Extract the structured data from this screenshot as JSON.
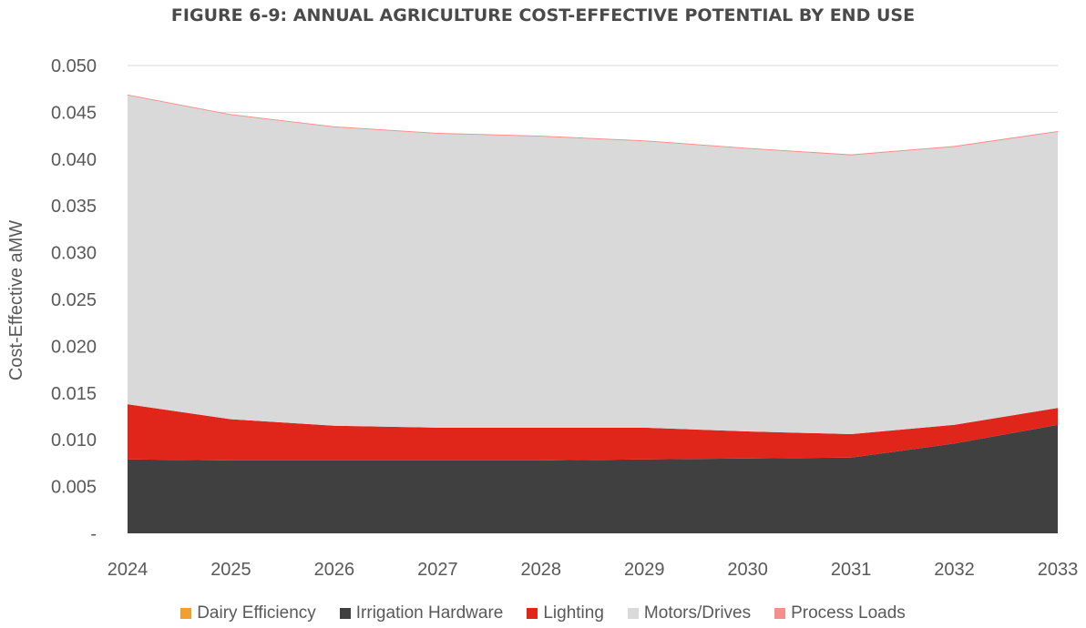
{
  "chart_data": {
    "type": "area",
    "stacked": true,
    "title": "FIGURE 6-9: ANNUAL AGRICULTURE COST-EFFECTIVE POTENTIAL BY END USE",
    "xlabel": "",
    "ylabel": "Cost-Effective aMW",
    "categories": [
      "2024",
      "2025",
      "2026",
      "2027",
      "2028",
      "2029",
      "2030",
      "2031",
      "2032",
      "2033"
    ],
    "ylim": [
      0,
      0.05
    ],
    "yticks": [
      "-",
      "0.005",
      "0.010",
      "0.015",
      "0.020",
      "0.025",
      "0.030",
      "0.035",
      "0.040",
      "0.045",
      "0.050"
    ],
    "grid": true,
    "legend_position": "bottom",
    "series": [
      {
        "name": "Dairy Efficiency",
        "color": "#f0a030",
        "values": [
          0.0,
          0.0,
          0.0,
          0.0,
          0.0,
          0.0,
          0.0,
          0.0,
          0.0,
          0.0
        ]
      },
      {
        "name": "Irrigation Hardware",
        "color": "#404040",
        "values": [
          0.0079,
          0.0078,
          0.0078,
          0.0078,
          0.0078,
          0.0079,
          0.008,
          0.0081,
          0.0096,
          0.0116
        ]
      },
      {
        "name": "Lighting",
        "color": "#e0251b",
        "values": [
          0.0059,
          0.0044,
          0.0037,
          0.0035,
          0.0035,
          0.0034,
          0.0029,
          0.0025,
          0.002,
          0.0018
        ]
      },
      {
        "name": "Motors/Drives",
        "color": "#d9d9d9",
        "values": [
          0.033,
          0.0325,
          0.0319,
          0.0314,
          0.0311,
          0.0306,
          0.0302,
          0.0298,
          0.0297,
          0.0295
        ]
      },
      {
        "name": "Process Loads",
        "color": "#f4908a",
        "values": [
          0.0001,
          0.0001,
          0.0001,
          0.0001,
          0.0001,
          0.0001,
          0.0001,
          0.0001,
          0.0001,
          0.0001
        ]
      }
    ]
  }
}
